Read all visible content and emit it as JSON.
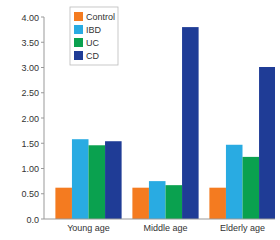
{
  "chart_data": {
    "type": "bar",
    "categories": [
      "Young age",
      "Middle age",
      "Elderly age"
    ],
    "series": [
      {
        "name": "Control",
        "color": "#f47b20",
        "values": [
          0.62,
          0.62,
          0.62
        ]
      },
      {
        "name": "IBD",
        "color": "#29abe2",
        "values": [
          1.58,
          0.75,
          1.47
        ]
      },
      {
        "name": "UC",
        "color": "#0aa14f",
        "values": [
          1.46,
          0.67,
          1.23
        ]
      },
      {
        "name": "CD",
        "color": "#1f3c96",
        "values": [
          1.54,
          3.8,
          3.01
        ]
      }
    ],
    "ylim": [
      0,
      4
    ],
    "yticks": [
      {
        "value": 0,
        "label": "0.0"
      },
      {
        "value": 0.5,
        "label": "0.50"
      },
      {
        "value": 1,
        "label": "1.00"
      },
      {
        "value": 1.5,
        "label": "1.50"
      },
      {
        "value": 2,
        "label": "2.00"
      },
      {
        "value": 2.5,
        "label": "2.50"
      },
      {
        "value": 3,
        "label": "3.00"
      },
      {
        "value": 3.5,
        "label": "3.50"
      },
      {
        "value": 4,
        "label": "4.00"
      }
    ],
    "grid": false,
    "legend": "top-left"
  }
}
